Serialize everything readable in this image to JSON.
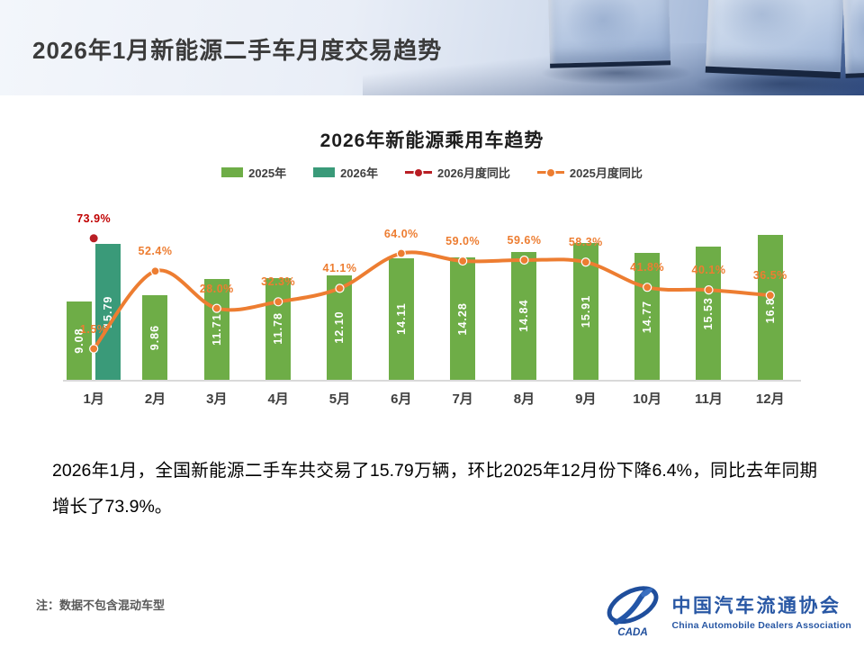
{
  "header": {
    "title": "2026年1月新能源二手车月度交易趋势"
  },
  "chart_data": {
    "type": "bar",
    "subtype": "bar+line combo",
    "title": "2026年新能源乘用车趋势",
    "categories": [
      "1月",
      "2月",
      "3月",
      "4月",
      "5月",
      "6月",
      "7月",
      "8月",
      "9月",
      "10月",
      "11月",
      "12月"
    ],
    "series": [
      {
        "name": "2025年",
        "type": "bar",
        "color": "#6ead47",
        "unit": "万辆",
        "values": [
          9.08,
          9.86,
          11.71,
          11.78,
          12.1,
          14.11,
          14.28,
          14.84,
          15.91,
          14.77,
          15.53,
          16.88
        ],
        "labels": [
          "9.08",
          "9.86",
          "11.71",
          "11.78",
          "12.10",
          "14.11",
          "14.28",
          "14.84",
          "15.91",
          "14.77",
          "15.53",
          "16.88"
        ]
      },
      {
        "name": "2026年",
        "type": "bar",
        "color": "#3a9a79",
        "unit": "万辆",
        "month_index": [
          0
        ],
        "values": [
          15.79
        ],
        "labels": [
          "15.79"
        ]
      },
      {
        "name": "2026月度同比",
        "type": "line",
        "color": "#b91e24",
        "label_color": "#c00000",
        "month_index": [
          0
        ],
        "values_pct": [
          73.9
        ],
        "labels": [
          "73.9%"
        ]
      },
      {
        "name": "2025月度同比",
        "type": "line",
        "color": "#ed7d31",
        "label_color": "#ed7d31",
        "values_pct": [
          1.5,
          52.4,
          28.0,
          32.3,
          41.1,
          64.0,
          59.0,
          59.6,
          58.3,
          41.8,
          40.1,
          36.5
        ],
        "labels": [
          "1.5%",
          "52.4%",
          "28.0%",
          "32.3%",
          "41.1%",
          "64.0%",
          "59.0%",
          "59.6%",
          "58.3%",
          "41.8%",
          "40.1%",
          "36.5%"
        ]
      }
    ],
    "ylim_bar": [
      0,
      20.4
    ],
    "ylim_pct": [
      -20,
      95
    ],
    "grid": false,
    "legend_position": "top",
    "y_axis_visible": false
  },
  "body": {
    "paragraph": "2026年1月，全国新能源二手车共交易了15.79万辆，环比2025年12月份下降6.4%，同比去年同期增长了73.9%。"
  },
  "footer": {
    "note": "注：数据不包含混动车型"
  },
  "logo": {
    "emblem": "CADA",
    "name_cn": "中国汽车流通协会",
    "name_en": "China Automobile Dealers Association"
  }
}
